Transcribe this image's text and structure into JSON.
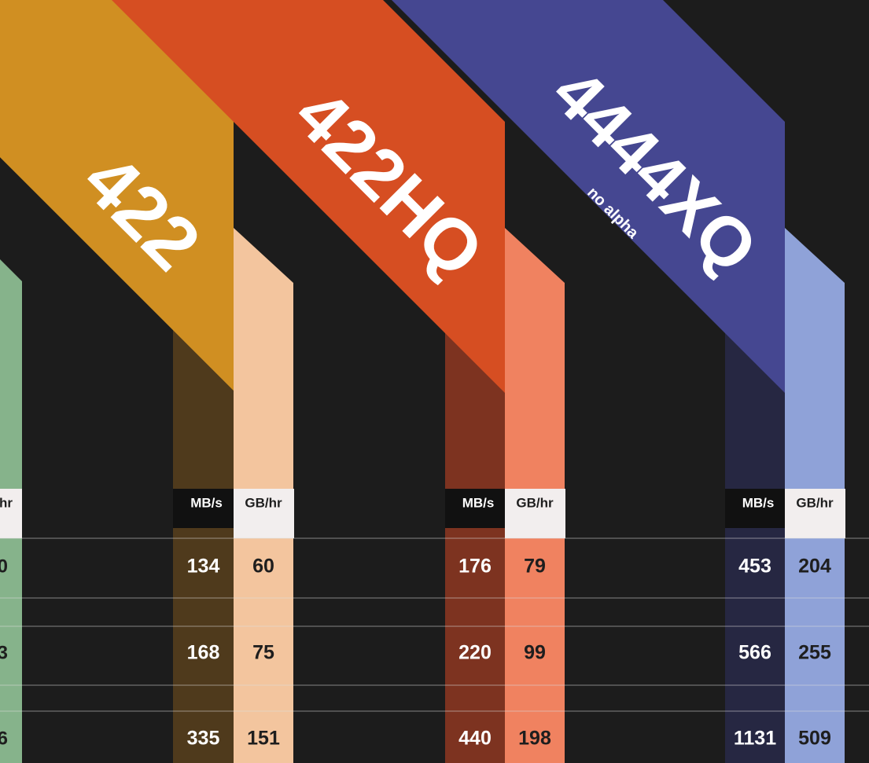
{
  "edge_column": {
    "header": "hr",
    "values": [
      "0",
      "3",
      "6"
    ]
  },
  "codecs": [
    {
      "name": "422",
      "mbps_header": "MB/s",
      "gbhr_header": "GB/hr",
      "mbps": [
        134,
        168,
        335
      ],
      "gbhr": [
        60,
        75,
        151
      ]
    },
    {
      "name": "422HQ",
      "mbps_header": "MB/s",
      "gbhr_header": "GB/hr",
      "mbps": [
        176,
        220,
        440
      ],
      "gbhr": [
        79,
        99,
        198
      ]
    },
    {
      "name": "4444XQ",
      "note": "no alpha",
      "mbps_header": "MB/s",
      "gbhr_header": "GB/hr",
      "mbps": [
        453,
        566,
        1131
      ],
      "gbhr": [
        204,
        255,
        509
      ]
    }
  ]
}
